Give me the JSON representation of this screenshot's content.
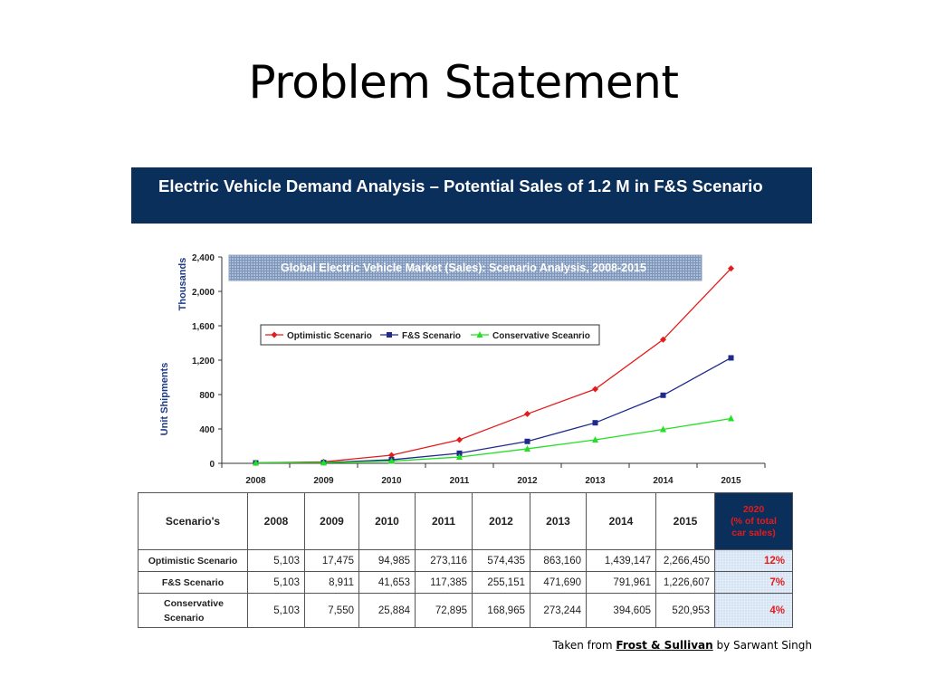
{
  "slide": {
    "title": "Problem Statement",
    "banner": "Electric Vehicle Demand Analysis – Potential Sales of 1.2 M in F&S Scenario"
  },
  "chart_data": {
    "type": "line",
    "title": "Global Electric Vehicle Market (Sales): Scenario Analysis, 2008-2015",
    "ylabel": "Unit Shipments",
    "yunit": "Thousands",
    "ylim": [
      0,
      2400
    ],
    "yticks": [
      "0",
      "400",
      "800",
      "1,200",
      "1,600",
      "2,000",
      "2,400"
    ],
    "ytick_values": [
      0,
      400,
      800,
      1200,
      1600,
      2000,
      2400
    ],
    "categories": [
      "2008",
      "2009",
      "2010",
      "2011",
      "2012",
      "2013",
      "2014",
      "2015"
    ],
    "grid": false,
    "legend_position": "top-left",
    "series": [
      {
        "name": "Optimistic Scenario",
        "color": "#e41b1b",
        "marker": "diamond",
        "values": [
          5.103,
          17.475,
          94.985,
          273.116,
          574.435,
          863.16,
          1439.147,
          2266.45
        ]
      },
      {
        "name": "F&S Scenario",
        "color": "#1f2a8c",
        "marker": "square",
        "values": [
          5.103,
          8.911,
          41.653,
          117.385,
          255.151,
          471.69,
          791.961,
          1226.607
        ]
      },
      {
        "name": "Conservative Sceanrio",
        "color": "#22e022",
        "marker": "triangle",
        "values": [
          5.103,
          7.55,
          25.884,
          72.895,
          168.965,
          273.244,
          394.605,
          520.953
        ]
      }
    ]
  },
  "table": {
    "header_label": "Scenario's",
    "years": [
      "2008",
      "2009",
      "2010",
      "2011",
      "2012",
      "2013",
      "2014",
      "2015"
    ],
    "share_header": [
      "2020",
      "(% of total",
      "car sales)"
    ],
    "rows": [
      {
        "label": [
          "Optimistic Scenario"
        ],
        "values": [
          "5,103",
          "17,475",
          "94,985",
          "273,116",
          "574,435",
          "863,160",
          "1,439,147",
          "2,266,450"
        ],
        "share": "12%"
      },
      {
        "label": [
          "F&S Scenario"
        ],
        "values": [
          "5,103",
          "8,911",
          "41,653",
          "117,385",
          "255,151",
          "471,690",
          "791,961",
          "1,226,607"
        ],
        "share": "7%"
      },
      {
        "label": [
          "Conservative",
          "Scenario"
        ],
        "values": [
          "5,103",
          "7,550",
          "25,884",
          "72,895",
          "168,965",
          "273,244",
          "394,605",
          "520,953"
        ],
        "share": "4%"
      }
    ]
  },
  "footer": {
    "prefix": "Taken from ",
    "source": "Frost & Sullivan",
    "suffix": " by Sarwant Singh"
  }
}
